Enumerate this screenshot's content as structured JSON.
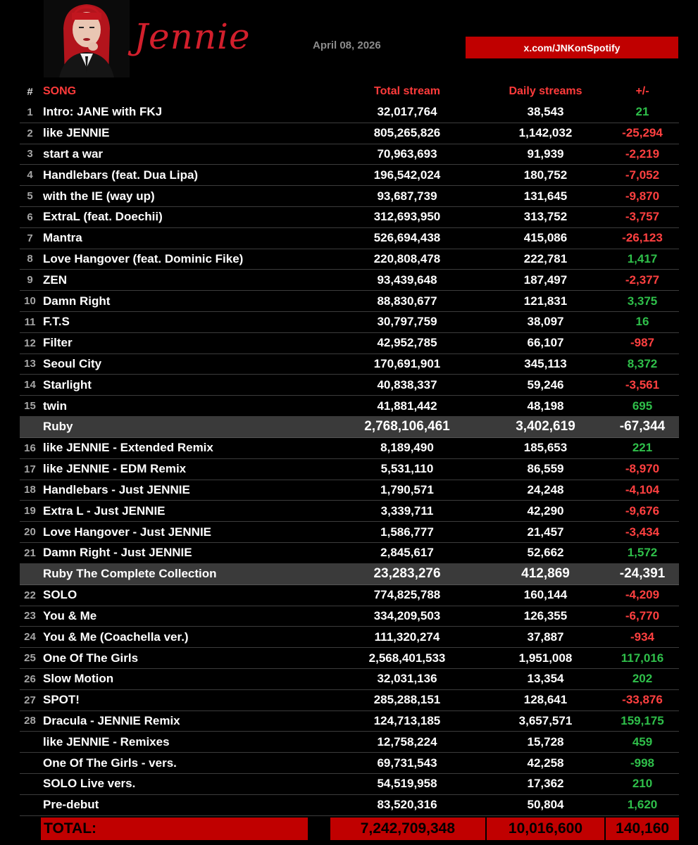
{
  "header": {
    "logo": "Jennie",
    "date": "April 08, 2026",
    "link": "x.com/JNKonSpotify",
    "accent": "#c00000"
  },
  "columns": {
    "num": "#",
    "song": "SONG",
    "total": "Total stream",
    "daily": "Daily streams",
    "diff": "+/-"
  },
  "rows": [
    {
      "type": "song",
      "num": "1",
      "song": "Intro: JANE with FKJ",
      "total": "32,017,764",
      "daily": "38,543",
      "diff": "21",
      "sign": "pos"
    },
    {
      "type": "song",
      "num": "2",
      "song": "like JENNIE",
      "total": "805,265,826",
      "daily": "1,142,032",
      "diff": "-25,294",
      "sign": "neg"
    },
    {
      "type": "song",
      "num": "3",
      "song": "start a war",
      "total": "70,963,693",
      "daily": "91,939",
      "diff": "-2,219",
      "sign": "neg"
    },
    {
      "type": "song",
      "num": "4",
      "song": "Handlebars (feat. Dua Lipa)",
      "total": "196,542,024",
      "daily": "180,752",
      "diff": "-7,052",
      "sign": "neg"
    },
    {
      "type": "song",
      "num": "5",
      "song": "with the IE (way up)",
      "total": "93,687,739",
      "daily": "131,645",
      "diff": "-9,870",
      "sign": "neg"
    },
    {
      "type": "song",
      "num": "6",
      "song": "ExtraL (feat. Doechii)",
      "total": "312,693,950",
      "daily": "313,752",
      "diff": "-3,757",
      "sign": "neg"
    },
    {
      "type": "song",
      "num": "7",
      "song": "Mantra",
      "total": "526,694,438",
      "daily": "415,086",
      "diff": "-26,123",
      "sign": "neg"
    },
    {
      "type": "song",
      "num": "8",
      "song": "Love Hangover (feat. Dominic Fike)",
      "total": "220,808,478",
      "daily": "222,781",
      "diff": "1,417",
      "sign": "pos"
    },
    {
      "type": "song",
      "num": "9",
      "song": "ZEN",
      "total": "93,439,648",
      "daily": "187,497",
      "diff": "-2,377",
      "sign": "neg"
    },
    {
      "type": "song",
      "num": "10",
      "song": "Damn Right",
      "total": "88,830,677",
      "daily": "121,831",
      "diff": "3,375",
      "sign": "pos"
    },
    {
      "type": "song",
      "num": "11",
      "song": "F.T.S",
      "total": "30,797,759",
      "daily": "38,097",
      "diff": "16",
      "sign": "pos"
    },
    {
      "type": "song",
      "num": "12",
      "song": "Filter",
      "total": "42,952,785",
      "daily": "66,107",
      "diff": "-987",
      "sign": "neg"
    },
    {
      "type": "song",
      "num": "13",
      "song": "Seoul City",
      "total": "170,691,901",
      "daily": "345,113",
      "diff": "8,372",
      "sign": "pos"
    },
    {
      "type": "song",
      "num": "14",
      "song": "Starlight",
      "total": "40,838,337",
      "daily": "59,246",
      "diff": "-3,561",
      "sign": "neg"
    },
    {
      "type": "song",
      "num": "15",
      "song": "twin",
      "total": "41,881,442",
      "daily": "48,198",
      "diff": "695",
      "sign": "pos"
    },
    {
      "type": "album",
      "big": true,
      "num": "",
      "song": "Ruby",
      "total": "2,768,106,461",
      "daily": "3,402,619",
      "diff": "-67,344",
      "sign": ""
    },
    {
      "type": "song",
      "num": "16",
      "song": "like JENNIE - Extended Remix",
      "total": "8,189,490",
      "daily": "185,653",
      "diff": "221",
      "sign": "pos"
    },
    {
      "type": "song",
      "num": "17",
      "song": "like JENNIE - EDM Remix",
      "total": "5,531,110",
      "daily": "86,559",
      "diff": "-8,970",
      "sign": "neg"
    },
    {
      "type": "song",
      "num": "18",
      "song": "Handlebars - Just JENNIE",
      "total": "1,790,571",
      "daily": "24,248",
      "diff": "-4,104",
      "sign": "neg"
    },
    {
      "type": "song",
      "num": "19",
      "song": "Extra L - Just JENNIE",
      "total": "3,339,711",
      "daily": "42,290",
      "diff": "-9,676",
      "sign": "neg"
    },
    {
      "type": "song",
      "num": "20",
      "song": "Love Hangover - Just JENNIE",
      "total": "1,586,777",
      "daily": "21,457",
      "diff": "-3,434",
      "sign": "neg"
    },
    {
      "type": "song",
      "num": "21",
      "song": "Damn Right - Just JENNIE",
      "total": "2,845,617",
      "daily": "52,662",
      "diff": "1,572",
      "sign": "pos"
    },
    {
      "type": "album",
      "big": true,
      "num": "",
      "song": "Ruby The Complete Collection",
      "total": "23,283,276",
      "daily": "412,869",
      "diff": "-24,391",
      "sign": ""
    },
    {
      "type": "song",
      "num": "22",
      "song": "SOLO",
      "total": "774,825,788",
      "daily": "160,144",
      "diff": "-4,209",
      "sign": "neg"
    },
    {
      "type": "song",
      "num": "23",
      "song": "You & Me",
      "total": "334,209,503",
      "daily": "126,355",
      "diff": "-6,770",
      "sign": "neg"
    },
    {
      "type": "song",
      "num": "24",
      "song": "You & Me (Coachella ver.)",
      "total": "111,320,274",
      "daily": "37,887",
      "diff": "-934",
      "sign": "neg"
    },
    {
      "type": "song",
      "num": "25",
      "song": "One Of The Girls",
      "total": "2,568,401,533",
      "daily": "1,951,008",
      "diff": "117,016",
      "sign": "pos"
    },
    {
      "type": "song",
      "num": "26",
      "song": "Slow Motion",
      "total": "32,031,136",
      "daily": "13,354",
      "diff": "202",
      "sign": "pos"
    },
    {
      "type": "song",
      "num": "27",
      "song": "SPOT!",
      "total": "285,288,151",
      "daily": "128,641",
      "diff": "-33,876",
      "sign": "neg"
    },
    {
      "type": "song",
      "num": "28",
      "song": "Dracula - JENNIE Remix",
      "total": "124,713,185",
      "daily": "3,657,571",
      "diff": "159,175",
      "sign": "pos"
    },
    {
      "type": "song",
      "num": "",
      "song": "like JENNIE - Remixes",
      "total": "12,758,224",
      "daily": "15,728",
      "diff": "459",
      "sign": "pos"
    },
    {
      "type": "song",
      "num": "",
      "song": "One Of The Girls -  vers.",
      "total": "69,731,543",
      "daily": "42,258",
      "diff": "-998",
      "sign": "pos"
    },
    {
      "type": "song",
      "num": "",
      "song": "SOLO Live vers.",
      "total": "54,519,958",
      "daily": "17,362",
      "diff": "210",
      "sign": "pos"
    },
    {
      "type": "song",
      "num": "",
      "song": "Pre-debut",
      "total": "83,520,316",
      "daily": "50,804",
      "diff": "1,620",
      "sign": "pos"
    }
  ],
  "totals": {
    "label": "TOTAL:",
    "total": "7,242,709,348",
    "daily": "10,016,600",
    "diff": "140,160"
  }
}
